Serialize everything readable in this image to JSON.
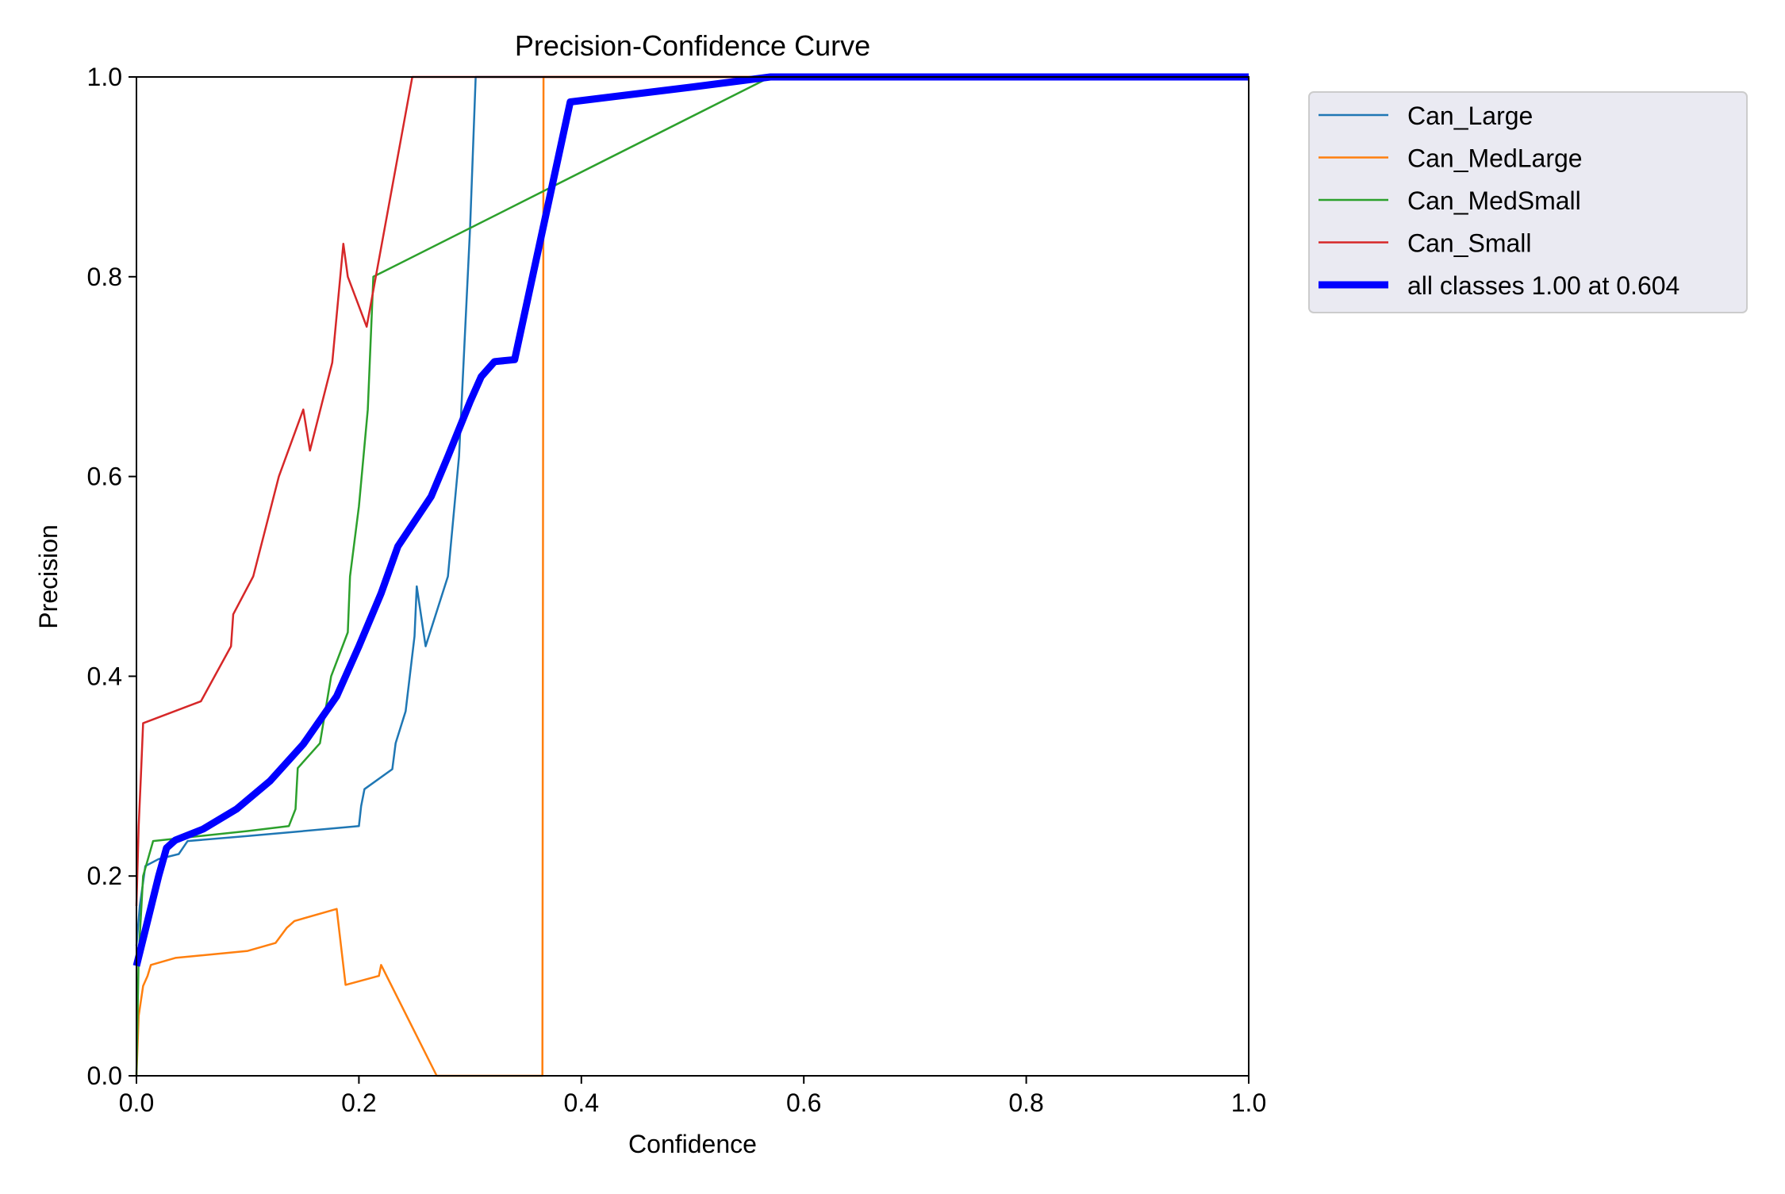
{
  "chart_data": {
    "type": "line",
    "title": "Precision-Confidence Curve",
    "xlabel": "Confidence",
    "ylabel": "Precision",
    "xlim": [
      0,
      1
    ],
    "ylim": [
      0,
      1
    ],
    "xticks": [
      "0.0",
      "0.2",
      "0.4",
      "0.6",
      "0.8",
      "1.0"
    ],
    "yticks": [
      "0.0",
      "0.2",
      "0.4",
      "0.6",
      "0.8",
      "1.0"
    ],
    "grid": false,
    "legend_position": "outside-top-right",
    "series": [
      {
        "name": "Can_Large",
        "color": "#1f77b4",
        "points": [
          [
            0.0,
            0.13
          ],
          [
            0.003,
            0.17
          ],
          [
            0.008,
            0.21
          ],
          [
            0.02,
            0.217
          ],
          [
            0.038,
            0.222
          ],
          [
            0.046,
            0.235
          ],
          [
            0.1,
            0.24
          ],
          [
            0.2,
            0.25
          ],
          [
            0.202,
            0.27
          ],
          [
            0.205,
            0.287
          ],
          [
            0.23,
            0.307
          ],
          [
            0.233,
            0.333
          ],
          [
            0.242,
            0.365
          ],
          [
            0.25,
            0.44
          ],
          [
            0.252,
            0.49
          ],
          [
            0.26,
            0.43
          ],
          [
            0.28,
            0.5
          ],
          [
            0.29,
            0.62
          ],
          [
            0.3,
            0.85
          ],
          [
            0.305,
            1.0
          ],
          [
            1.0,
            1.0
          ]
        ]
      },
      {
        "name": "Can_MedLarge",
        "color": "#ff7f0e",
        "points": [
          [
            0.0,
            0.0
          ],
          [
            0.002,
            0.06
          ],
          [
            0.006,
            0.09
          ],
          [
            0.01,
            0.1
          ],
          [
            0.013,
            0.111
          ],
          [
            0.035,
            0.118
          ],
          [
            0.1,
            0.125
          ],
          [
            0.125,
            0.133
          ],
          [
            0.135,
            0.148
          ],
          [
            0.142,
            0.155
          ],
          [
            0.18,
            0.167
          ],
          [
            0.188,
            0.091
          ],
          [
            0.218,
            0.1
          ],
          [
            0.22,
            0.111
          ],
          [
            0.27,
            0.0
          ],
          [
            0.365,
            0.0
          ],
          [
            0.366,
            1.0
          ],
          [
            1.0,
            1.0
          ]
        ]
      },
      {
        "name": "Can_MedSmall",
        "color": "#2ca02c",
        "points": [
          [
            0.0,
            0.0
          ],
          [
            0.002,
            0.12
          ],
          [
            0.006,
            0.2
          ],
          [
            0.015,
            0.235
          ],
          [
            0.1,
            0.245
          ],
          [
            0.137,
            0.25
          ],
          [
            0.143,
            0.267
          ],
          [
            0.145,
            0.308
          ],
          [
            0.165,
            0.333
          ],
          [
            0.175,
            0.4
          ],
          [
            0.19,
            0.444
          ],
          [
            0.192,
            0.5
          ],
          [
            0.2,
            0.57
          ],
          [
            0.208,
            0.667
          ],
          [
            0.213,
            0.8
          ],
          [
            0.57,
            1.0
          ],
          [
            1.0,
            1.0
          ]
        ]
      },
      {
        "name": "Can_Small",
        "color": "#d62728",
        "points": [
          [
            0.0,
            0.17
          ],
          [
            0.002,
            0.25
          ],
          [
            0.004,
            0.3
          ],
          [
            0.006,
            0.353
          ],
          [
            0.058,
            0.375
          ],
          [
            0.085,
            0.43
          ],
          [
            0.087,
            0.462
          ],
          [
            0.105,
            0.5
          ],
          [
            0.128,
            0.6
          ],
          [
            0.15,
            0.667
          ],
          [
            0.156,
            0.626
          ],
          [
            0.176,
            0.714
          ],
          [
            0.186,
            0.833
          ],
          [
            0.19,
            0.8
          ],
          [
            0.207,
            0.75
          ],
          [
            0.248,
            1.0
          ],
          [
            1.0,
            1.0
          ]
        ]
      },
      {
        "name": "all classes 1.00 at 0.604",
        "color": "#0000ff",
        "bold": true,
        "points": [
          [
            0.0,
            0.11
          ],
          [
            0.01,
            0.155
          ],
          [
            0.02,
            0.2
          ],
          [
            0.027,
            0.228
          ],
          [
            0.035,
            0.236
          ],
          [
            0.06,
            0.247
          ],
          [
            0.09,
            0.267
          ],
          [
            0.12,
            0.295
          ],
          [
            0.15,
            0.332
          ],
          [
            0.18,
            0.38
          ],
          [
            0.2,
            0.43
          ],
          [
            0.22,
            0.483
          ],
          [
            0.235,
            0.53
          ],
          [
            0.25,
            0.555
          ],
          [
            0.265,
            0.58
          ],
          [
            0.28,
            0.62
          ],
          [
            0.3,
            0.675
          ],
          [
            0.31,
            0.7
          ],
          [
            0.322,
            0.715
          ],
          [
            0.34,
            0.717
          ],
          [
            0.36,
            0.82
          ],
          [
            0.39,
            0.975
          ],
          [
            0.5,
            0.99
          ],
          [
            0.57,
            1.0
          ],
          [
            0.604,
            1.0
          ],
          [
            1.0,
            1.0
          ]
        ]
      }
    ]
  }
}
